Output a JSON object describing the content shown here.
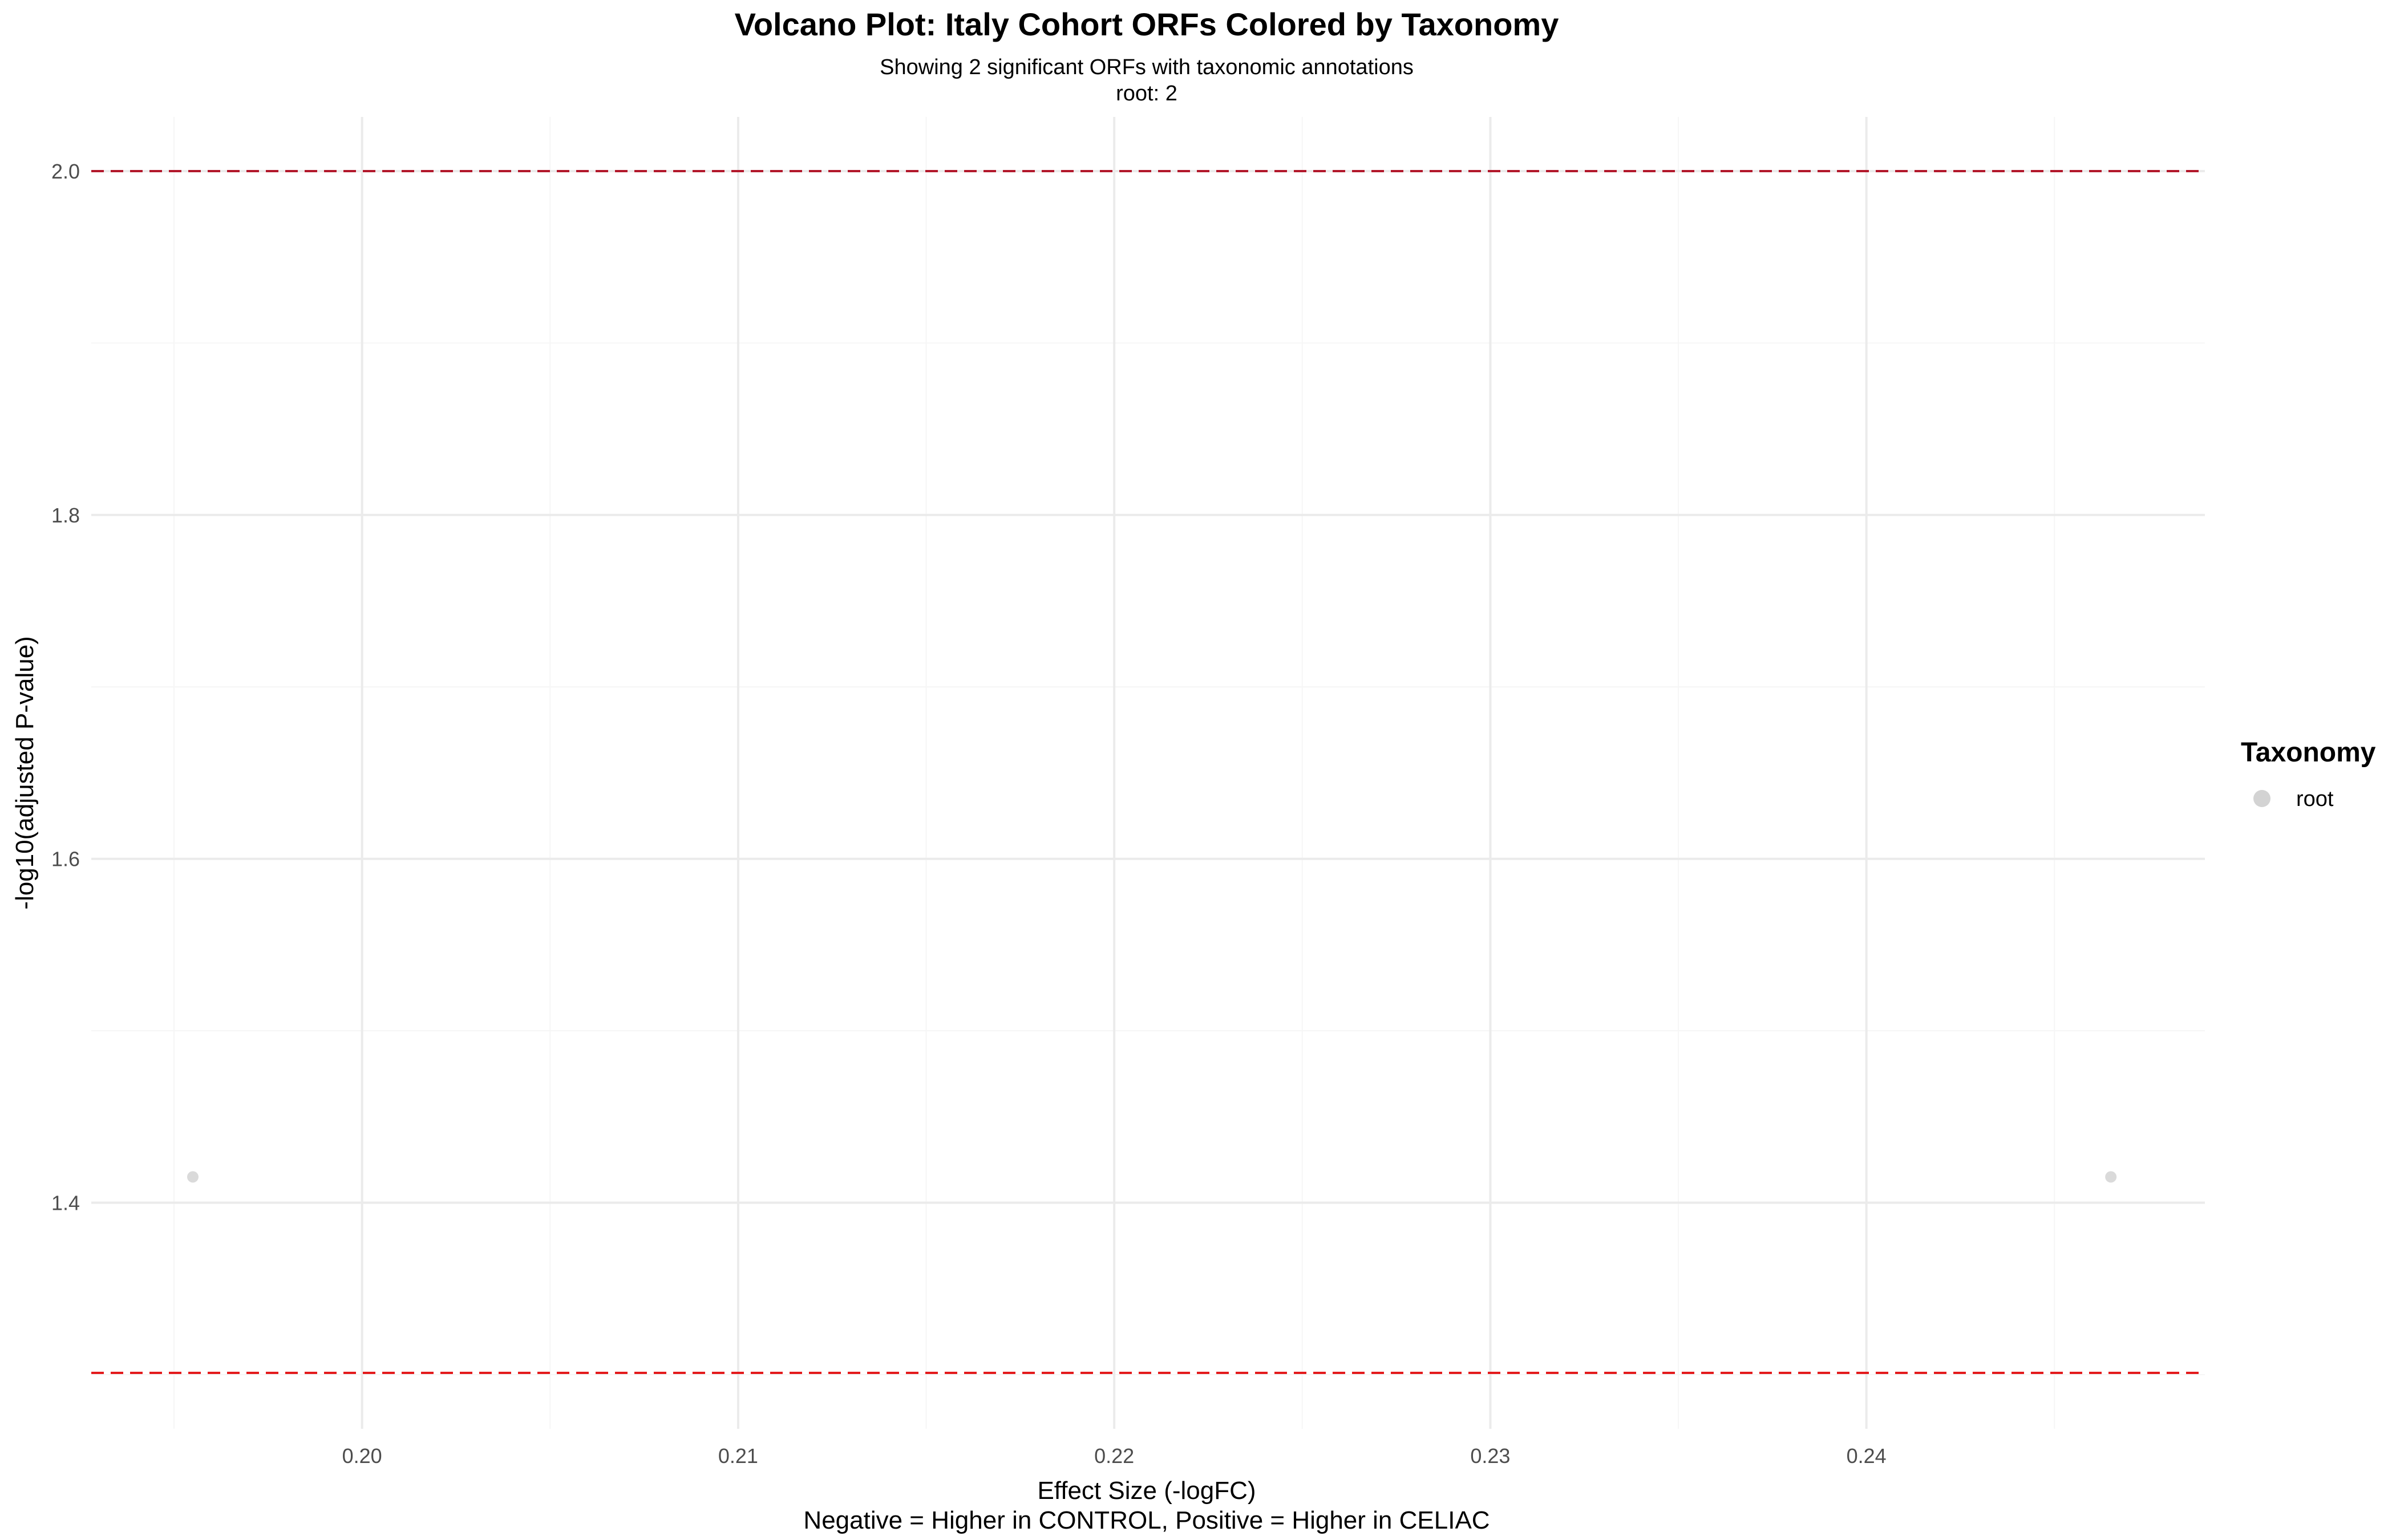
{
  "chart_data": {
    "type": "scatter",
    "title": "Volcano Plot: Italy Cohort ORFs Colored by Taxonomy",
    "subtitle": [
      "Showing 2 significant ORFs with taxonomic annotations",
      "root: 2"
    ],
    "xlabel": [
      "Effect Size (-logFC)",
      "Negative = Higher in CONTROL, Positive = Higher in CELIAC"
    ],
    "ylabel": "-log10(adjusted P-value)",
    "xlim": [
      0.1928,
      0.249
    ],
    "ylim": [
      1.2685,
      2.0315
    ],
    "x_ticks": [
      0.2,
      0.21,
      0.22,
      0.23,
      0.24
    ],
    "x_tick_labels": [
      "0.20",
      "0.21",
      "0.22",
      "0.23",
      "0.24"
    ],
    "y_ticks": [
      1.4,
      1.6,
      1.8,
      2.0
    ],
    "y_tick_labels": [
      "1.4",
      "1.6",
      "1.8",
      "2.0"
    ],
    "x_minor_ticks": [
      0.195,
      0.205,
      0.215,
      0.225,
      0.235,
      0.245
    ],
    "y_minor_ticks": [
      1.3,
      1.5,
      1.7,
      1.9
    ],
    "grid": true,
    "hlines": [
      {
        "y": 2.0,
        "color": "#b2182b",
        "style": "dashed"
      },
      {
        "y": 1.301,
        "color": "#e31a1c",
        "style": "dashed"
      }
    ],
    "series": [
      {
        "name": "root",
        "color": "#d3d3d3",
        "x": [
          0.1955,
          0.2465
        ],
        "y": [
          1.415,
          1.415
        ]
      }
    ],
    "legend": {
      "title": "Taxonomy",
      "position": "right"
    }
  }
}
